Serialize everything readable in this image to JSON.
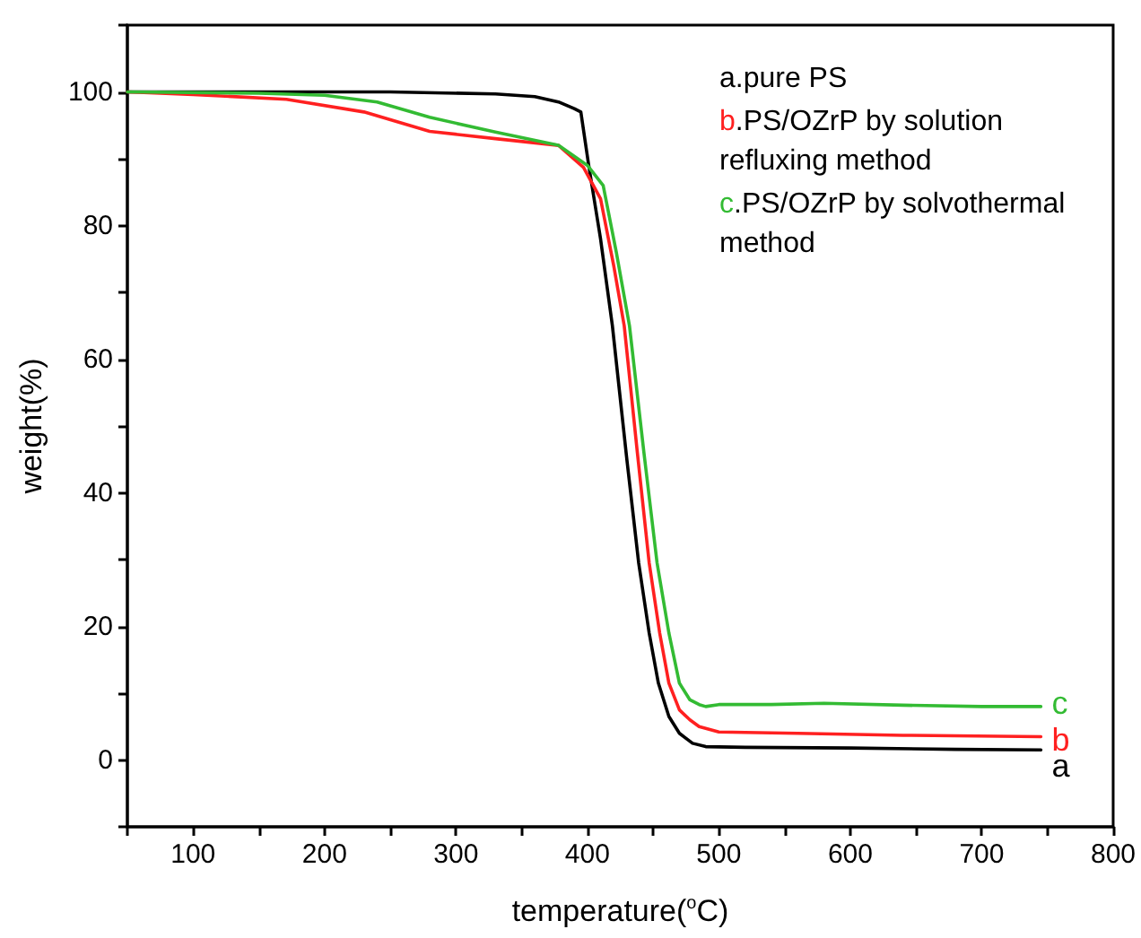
{
  "chart_data": {
    "type": "line",
    "xlabel": "temperature($^{o}$C)",
    "ylabel": "weight(%)",
    "xlim": [
      50,
      800
    ],
    "ylim": [
      -10,
      110
    ],
    "xticks": [
      {
        "value": 50,
        "label": null
      },
      100,
      {
        "value": 150,
        "label": null
      },
      200,
      {
        "value": 250,
        "label": null
      },
      300,
      {
        "value": 350,
        "label": null
      },
      400,
      {
        "value": 450,
        "label": null
      },
      500,
      {
        "value": 550,
        "label": null
      },
      600,
      {
        "value": 650,
        "label": null
      },
      700,
      {
        "value": 750,
        "label": null
      },
      800
    ],
    "yticks": [
      {
        "value": -10,
        "label": null
      },
      0,
      {
        "value": 10,
        "label": null
      },
      20,
      {
        "value": 30,
        "label": null
      },
      40,
      {
        "value": 50,
        "label": null
      },
      60,
      {
        "value": 70,
        "label": null
      },
      80,
      {
        "value": 90,
        "label": null
      },
      100,
      {
        "value": 110,
        "label": null
      }
    ],
    "grid": false,
    "legend": "top right",
    "marker": "none",
    "line_style": "solid",
    "series": [
      {
        "name": "a.pure PS",
        "color": "#000000",
        "x": [
          50,
          150,
          250,
          330,
          360,
          378,
          390,
          395,
          401,
          410,
          419,
          430,
          439,
          447,
          454,
          462,
          470,
          480,
          490,
          520,
          600,
          680,
          745
        ],
        "values": [
          100,
          100,
          100,
          99.7,
          99.3,
          98.5,
          97.5,
          97,
          89,
          78,
          65,
          45,
          29.5,
          19,
          11.5,
          6.5,
          4,
          2.5,
          2,
          1.9,
          1.8,
          1.6,
          1.5
        ]
      },
      {
        "name": "b.PS/OZrP by solution refluxing method",
        "color": "#ff2020",
        "x": [
          50,
          100,
          171,
          230,
          280,
          330,
          378,
          397,
          410,
          420,
          428,
          438,
          447,
          455,
          462,
          470,
          478,
          485,
          500,
          560,
          640,
          745
        ],
        "values": [
          100,
          99.6,
          98.9,
          97,
          94.1,
          93,
          92,
          88.7,
          84,
          74,
          65,
          46,
          29.5,
          19,
          11.5,
          7.5,
          6,
          5,
          4.2,
          4,
          3.7,
          3.5
        ]
      },
      {
        "name": "c.PS/OZrP by solvothermal method",
        "color": "#33bb33",
        "x": [
          50,
          150,
          200,
          240,
          280,
          330,
          378,
          400,
          412,
          422,
          432,
          443,
          453,
          462,
          470,
          478,
          485,
          490,
          500,
          540,
          580,
          640,
          700,
          745
        ],
        "values": [
          100,
          99.8,
          99.5,
          98.5,
          96.2,
          94,
          92,
          89,
          86,
          76,
          65,
          46,
          29.5,
          19,
          11.5,
          9,
          8.3,
          8,
          8.3,
          8.3,
          8.5,
          8.2,
          8,
          8
        ]
      }
    ],
    "annotations": [
      "a",
      "b",
      "c"
    ]
  }
}
